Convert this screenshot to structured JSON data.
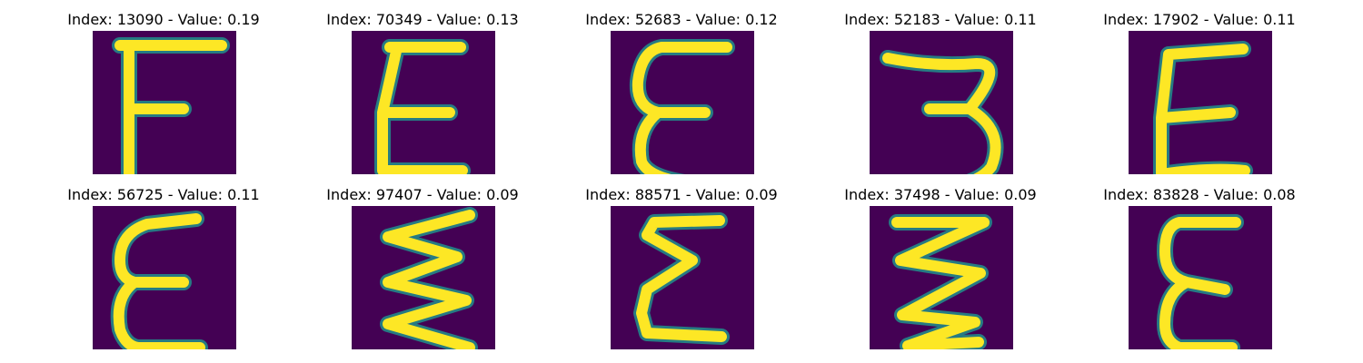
{
  "colors": {
    "background": "#440154",
    "stroke_core": "#FDE725",
    "stroke_edge": "#21918C"
  },
  "panels": [
    {
      "title": "Index: 13090 - Value: 0.19"
    },
    {
      "title": "Index: 70349 - Value: 0.13"
    },
    {
      "title": "Index: 52683 - Value: 0.12"
    },
    {
      "title": "Index: 52183 - Value: 0.11"
    },
    {
      "title": "Index: 17902 - Value: 0.11"
    },
    {
      "title": "Index: 56725 - Value: 0.11"
    },
    {
      "title": "Index: 97407 - Value: 0.09"
    },
    {
      "title": "Index: 88571 - Value: 0.09"
    },
    {
      "title": "Index: 37498 - Value: 0.09"
    },
    {
      "title": "Index: 83828 - Value: 0.08"
    }
  ]
}
